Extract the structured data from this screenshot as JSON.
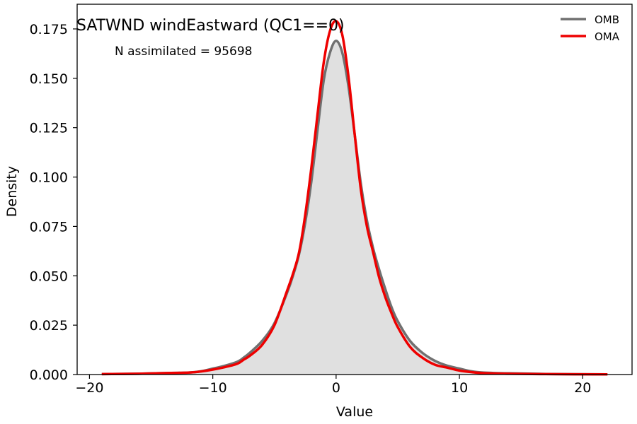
{
  "chart_data": {
    "type": "area",
    "title": "SATWND windEastward (QC1==0)",
    "annotation": "N assimilated = 95698",
    "xlabel": "Value",
    "ylabel": "Density",
    "xlim": [
      -21,
      24
    ],
    "ylim": [
      0,
      0.1875
    ],
    "xticks": [
      -20,
      -10,
      0,
      10,
      20
    ],
    "xtick_labels": [
      "−20",
      "−10",
      "0",
      "10",
      "20"
    ],
    "yticks": [
      0,
      0.025,
      0.05,
      0.075,
      0.1,
      0.125,
      0.15,
      0.175
    ],
    "ytick_labels": [
      "0.000",
      "0.025",
      "0.050",
      "0.075",
      "0.100",
      "0.125",
      "0.150",
      "0.175"
    ],
    "grid": false,
    "legend_position": "top-right",
    "histogram_fill": "#e0e0e0",
    "series": [
      {
        "name": "OMB",
        "color": "#707070",
        "x": [
          -19,
          -16,
          -14,
          -12,
          -11,
          -10,
          -9,
          -8,
          -7.5,
          -7,
          -6,
          -5,
          -4,
          -3.5,
          -3,
          -2.5,
          -2,
          -1.5,
          -1,
          -0.5,
          0,
          0.5,
          1,
          1.5,
          2,
          2.5,
          3,
          3.5,
          4,
          4.5,
          5,
          6,
          7,
          8,
          9,
          10,
          11,
          12,
          14,
          17,
          22
        ],
        "y": [
          0.0002,
          0.0004,
          0.0007,
          0.001,
          0.0016,
          0.003,
          0.0045,
          0.0065,
          0.0085,
          0.011,
          0.017,
          0.026,
          0.041,
          0.05,
          0.061,
          0.077,
          0.098,
          0.124,
          0.149,
          0.163,
          0.169,
          0.163,
          0.146,
          0.122,
          0.097,
          0.078,
          0.064,
          0.053,
          0.043,
          0.034,
          0.027,
          0.017,
          0.011,
          0.007,
          0.0045,
          0.003,
          0.0016,
          0.001,
          0.0006,
          0.0003,
          0.0001
        ]
      },
      {
        "name": "OMA",
        "color": "#ee0000",
        "x": [
          -19,
          -16,
          -14,
          -12,
          -11,
          -10,
          -9,
          -8,
          -7.5,
          -7,
          -6,
          -5,
          -4,
          -3.5,
          -3,
          -2.5,
          -2,
          -1.5,
          -1,
          -0.5,
          0,
          0.5,
          1,
          1.5,
          2,
          2.5,
          3,
          3.5,
          4,
          4.5,
          5,
          6,
          7,
          8,
          9,
          10,
          11,
          12,
          14,
          17,
          22
        ],
        "y": [
          0.0002,
          0.0004,
          0.0007,
          0.001,
          0.0015,
          0.0025,
          0.0038,
          0.0055,
          0.0075,
          0.0095,
          0.015,
          0.025,
          0.042,
          0.051,
          0.062,
          0.081,
          0.105,
          0.132,
          0.158,
          0.174,
          0.179,
          0.172,
          0.151,
          0.122,
          0.094,
          0.075,
          0.062,
          0.049,
          0.039,
          0.031,
          0.024,
          0.014,
          0.0085,
          0.005,
          0.0035,
          0.002,
          0.0012,
          0.0007,
          0.0004,
          0.0002,
          0.0001
        ]
      }
    ]
  }
}
